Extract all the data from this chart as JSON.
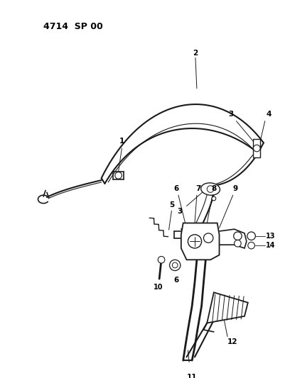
{
  "title": "4714  SP 00",
  "bg": "#ffffff",
  "lc": "#1a1a1a",
  "fig_w": 4.08,
  "fig_h": 5.33,
  "dpi": 100
}
